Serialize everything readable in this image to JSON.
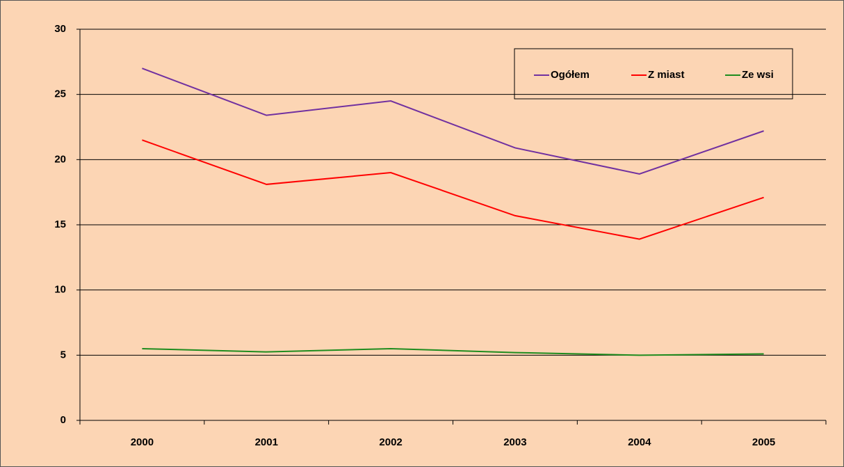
{
  "chart_data": {
    "type": "line",
    "categories": [
      "2000",
      "2001",
      "2002",
      "2003",
      "2004",
      "2005"
    ],
    "series": [
      {
        "name": "Ogółem",
        "color": "#7030a0",
        "values": [
          27.0,
          23.4,
          24.5,
          20.9,
          18.9,
          22.2
        ]
      },
      {
        "name": "Z miast",
        "color": "#ff0000",
        "values": [
          21.5,
          18.1,
          19.0,
          15.7,
          13.9,
          17.1
        ]
      },
      {
        "name": "Ze wsi",
        "color": "#1e8c1e",
        "values": [
          5.5,
          5.25,
          5.5,
          5.2,
          5.0,
          5.1
        ]
      }
    ],
    "ylim": [
      0,
      30
    ],
    "yticks": [
      0,
      5,
      10,
      15,
      20,
      25,
      30
    ],
    "grid": true,
    "legend": "top-right"
  }
}
